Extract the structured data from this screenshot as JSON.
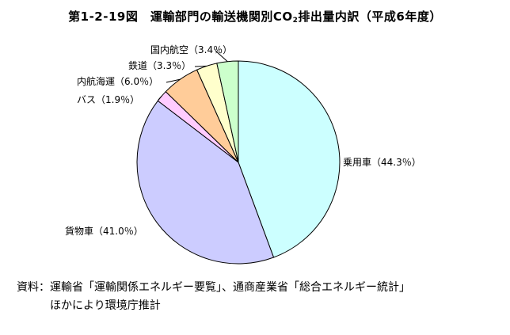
{
  "figure": {
    "number": "第1-2-19図",
    "title_pre": "運輸部門の輸送機関別CO",
    "title_sub": "2",
    "title_post": "排出量内訳（平成6年度）"
  },
  "chart_data": {
    "type": "pie",
    "title": "第1-2-19図　運輸部門の輸送機関別CO2排出量内訳（平成6年度）",
    "unit": "%",
    "start_angle": "12 o'clock",
    "direction": "clockwise",
    "slices": [
      {
        "label": "乗用車",
        "value": 44.3,
        "label_text": "乗用車（44.3％）",
        "color": "#ccffff"
      },
      {
        "label": "貨物車",
        "value": 41.0,
        "label_text": "貨物車（41.0％）",
        "color": "#ccccff"
      },
      {
        "label": "バス",
        "value": 1.9,
        "label_text": "バス（1.9％）",
        "color": "#ffccff"
      },
      {
        "label": "内航海運",
        "value": 6.0,
        "label_text": "内航海運（6.0％）",
        "color": "#ffcc99"
      },
      {
        "label": "鉄道",
        "value": 3.3,
        "label_text": "鉄道（3.3％）",
        "color": "#ffffcc"
      },
      {
        "label": "国内航空",
        "value": 3.4,
        "label_text": "国内航空（3.4％）",
        "color": "#ccffcc"
      }
    ]
  },
  "source": {
    "line1": "資料：運輸省「運輸関係エネルギー要覧」、通商産業省「総合エネルギー統計」",
    "line2": "　　　ほかにより環境庁推計"
  }
}
